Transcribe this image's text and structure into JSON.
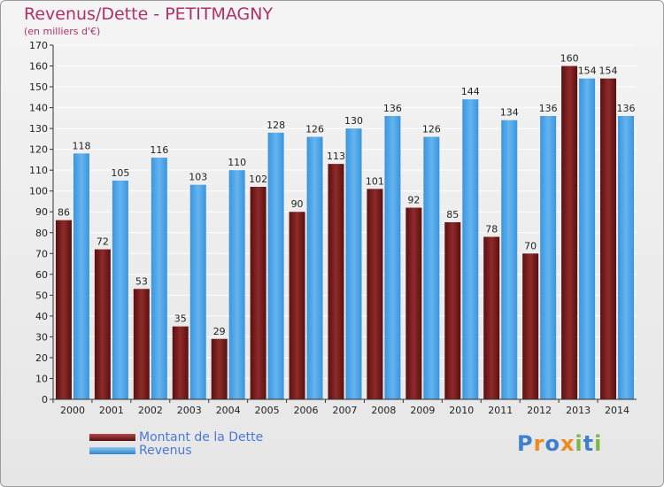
{
  "chart_data": {
    "type": "bar",
    "title": "Revenus/Dette - PETITMAGNY",
    "subtitle": "(en milliers d'€)",
    "categories": [
      "2000",
      "2001",
      "2002",
      "2003",
      "2004",
      "2005",
      "2006",
      "2007",
      "2008",
      "2009",
      "2010",
      "2011",
      "2012",
      "2013",
      "2014"
    ],
    "series": [
      {
        "name": "Montant de la Dette",
        "color": "#7a1f1f",
        "values": [
          86,
          72,
          53,
          35,
          29,
          102,
          90,
          113,
          101,
          92,
          85,
          78,
          70,
          160,
          154
        ]
      },
      {
        "name": "Revenus",
        "color": "#4da3e6",
        "values": [
          118,
          105,
          116,
          103,
          110,
          128,
          126,
          130,
          136,
          126,
          144,
          134,
          136,
          154,
          136
        ]
      }
    ],
    "ylim": [
      0,
      170
    ],
    "yticks": [
      0,
      10,
      20,
      30,
      40,
      50,
      60,
      70,
      80,
      90,
      100,
      110,
      120,
      130,
      140,
      150,
      160,
      170
    ],
    "grid": true,
    "legend": "bottom-left"
  },
  "logo": {
    "letters": [
      "P",
      "r",
      "o",
      "x",
      "i",
      "t",
      "i"
    ],
    "colors": [
      "#3f7fd0",
      "#f08a1e",
      "#3f7fd0",
      "#f08a1e",
      "#7ab648",
      "#3f7fd0",
      "#7ab648"
    ]
  }
}
